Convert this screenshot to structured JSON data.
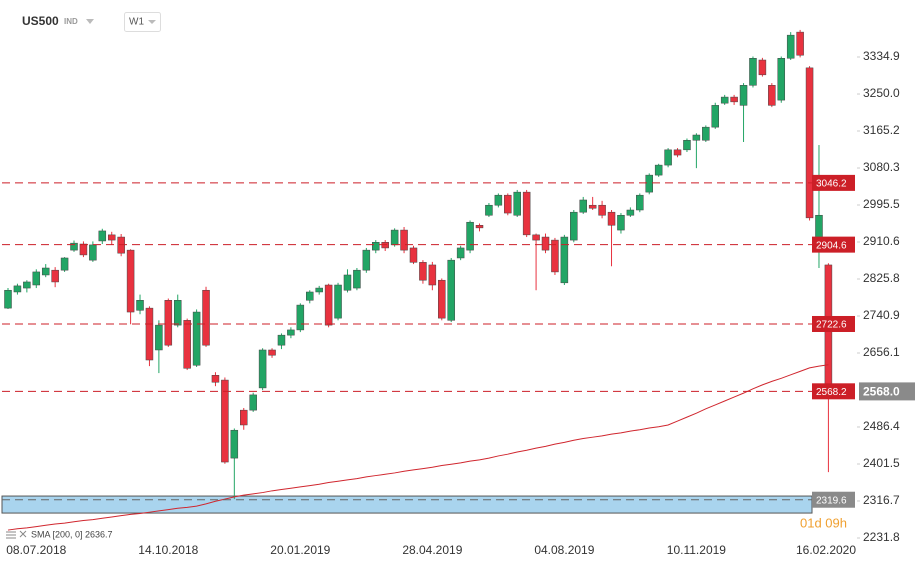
{
  "header": {
    "symbol": "US500",
    "market": "IND",
    "timeframe": "W1"
  },
  "chart_data": {
    "type": "candlestick",
    "categories": [
      null,
      null,
      null,
      "08.07.2018",
      null,
      null,
      null,
      null,
      null,
      null,
      null,
      null,
      null,
      null,
      null,
      null,
      null,
      "14.10.2018",
      null,
      null,
      null,
      null,
      null,
      null,
      null,
      null,
      null,
      null,
      null,
      null,
      null,
      "20.01.2019",
      null,
      null,
      null,
      null,
      null,
      null,
      null,
      null,
      null,
      null,
      null,
      null,
      null,
      "28.04.2019",
      null,
      null,
      null,
      null,
      null,
      null,
      null,
      null,
      null,
      null,
      null,
      null,
      null,
      "04.08.2019",
      null,
      null,
      null,
      null,
      null,
      null,
      null,
      null,
      null,
      null,
      null,
      null,
      null,
      "10.11.2019",
      null,
      null,
      null,
      null,
      null,
      null,
      null,
      null,
      null,
      null,
      null,
      null,
      null,
      "16.02.2020"
    ],
    "open": [
      2759,
      2796,
      2805,
      2812,
      2835,
      2846,
      2846,
      2892,
      2906,
      2869,
      2913,
      2927,
      2922,
      2892,
      2754,
      2759,
      2663,
      2777,
      2720,
      2731,
      2628,
      2800,
      2605,
      2594,
      2415,
      2525,
      2525,
      2576,
      2663,
      2674,
      2697,
      2709,
      2777,
      2796,
      2812,
      2736,
      2800,
      2805,
      2846,
      2892,
      2910,
      2904,
      2938,
      2897,
      2864,
      2858,
      2823,
      2731,
      2874,
      2892,
      2949,
      2972,
      2995,
      3018,
      2972,
      3025,
      2927,
      2922,
      2915,
      2817,
      2915,
      2979,
      2995,
      2995,
      2979,
      2938,
      2972,
      2984,
      3025,
      3064,
      3087,
      3122,
      3122,
      3144,
      3144,
      3174,
      3229,
      3243,
      3224,
      3270,
      3328,
      3270,
      3236,
      3332,
      3392,
      3310,
      2915,
      2858
    ],
    "high": [
      2805,
      2815,
      2823,
      2848,
      2860,
      2853,
      2876,
      2914,
      2912,
      2912,
      2941,
      2934,
      2929,
      2894,
      2790,
      2763,
      2731,
      2781,
      2790,
      2735,
      2756,
      2808,
      2612,
      2600,
      2483,
      2530,
      2565,
      2667,
      2667,
      2701,
      2715,
      2770,
      2800,
      2810,
      2815,
      2817,
      2848,
      2851,
      2897,
      2915,
      2915,
      2942,
      2945,
      2902,
      2869,
      2865,
      2827,
      2874,
      2902,
      2960,
      2953,
      3000,
      3022,
      3022,
      3030,
      3030,
      2930,
      2930,
      2920,
      2927,
      2984,
      3014,
      3014,
      3005,
      2984,
      2977,
      2990,
      3022,
      3068,
      3090,
      3126,
      3126,
      3148,
      3160,
      3178,
      3230,
      3248,
      3248,
      3275,
      3336,
      3333,
      3275,
      3336,
      3392,
      3397,
      3314,
      3133,
      2862
    ],
    "low": [
      2757,
      2790,
      2795,
      2805,
      2830,
      2807,
      2842,
      2888,
      2876,
      2865,
      2906,
      2904,
      2878,
      2722,
      2745,
      2626,
      2610,
      2670,
      2715,
      2617,
      2624,
      2670,
      2580,
      2402,
      2321,
      2480,
      2521,
      2571,
      2645,
      2665,
      2690,
      2704,
      2770,
      2790,
      2715,
      2731,
      2795,
      2800,
      2840,
      2885,
      2890,
      2900,
      2885,
      2860,
      2815,
      2800,
      2731,
      2727,
      2869,
      2885,
      2935,
      2968,
      2990,
      2972,
      2968,
      2922,
      2800,
      2885,
      2835,
      2812,
      2910,
      2975,
      2984,
      2965,
      2855,
      2930,
      2968,
      2979,
      3020,
      3060,
      3082,
      3105,
      3117,
      3080,
      3140,
      3170,
      3225,
      3225,
      3140,
      3265,
      3290,
      3220,
      3230,
      3328,
      3334,
      2960,
      2851,
      2383
    ],
    "close": [
      2800,
      2810,
      2819,
      2842,
      2851,
      2819,
      2874,
      2908,
      2881,
      2904,
      2936,
      2915,
      2885,
      2750,
      2777,
      2640,
      2720,
      2674,
      2777,
      2621,
      2750,
      2674,
      2589,
      2406,
      2479,
      2491,
      2560,
      2663,
      2651,
      2697,
      2709,
      2766,
      2796,
      2805,
      2720,
      2812,
      2835,
      2846,
      2892,
      2910,
      2897,
      2938,
      2892,
      2864,
      2823,
      2812,
      2736,
      2869,
      2897,
      2956,
      2943,
      2995,
      3018,
      2977,
      3025,
      2927,
      2915,
      2892,
      2842,
      2922,
      2979,
      3007,
      2988,
      2972,
      2949,
      2972,
      2984,
      3018,
      3064,
      3087,
      3122,
      3110,
      3144,
      3156,
      3174,
      3224,
      3243,
      3232,
      3270,
      3332,
      3294,
      3224,
      3332,
      3385,
      3339,
      2966,
      2972,
      2560
    ],
    "up_color": "#22a565",
    "down_color": "#e8323f",
    "indicator": {
      "label": "SMA [200, 0] 2636.7",
      "color": "#d0262e",
      "values": [
        2250,
        2253,
        2255,
        2258,
        2261,
        2264,
        2266,
        2269,
        2272,
        2274,
        2277,
        2280,
        2283,
        2286,
        2288,
        2291,
        2294,
        2297,
        2300,
        2302,
        2305,
        2310,
        2316,
        2321,
        2326,
        2330,
        2333,
        2336,
        2340,
        2343,
        2346,
        2349,
        2352,
        2355,
        2359,
        2362,
        2365,
        2368,
        2372,
        2375,
        2378,
        2381,
        2385,
        2388,
        2391,
        2394,
        2398,
        2401,
        2404,
        2408,
        2411,
        2415,
        2420,
        2424,
        2429,
        2433,
        2438,
        2442,
        2447,
        2451,
        2456,
        2460,
        2463,
        2466,
        2470,
        2473,
        2477,
        2480,
        2484,
        2487,
        2491,
        2500,
        2509,
        2518,
        2528,
        2537,
        2546,
        2555,
        2564,
        2574,
        2583,
        2591,
        2598,
        2606,
        2614,
        2622,
        2626,
        2629
      ]
    },
    "levels": [
      3046.2,
      2904.6,
      2722.6,
      2568.2,
      2319.6
    ],
    "level_color": "#cc1f27",
    "zone": [
      2289,
      2328
    ],
    "current_price": {
      "value": 2568,
      "label": "2568.0"
    },
    "countdown": "01d 09h",
    "ylim": [
      2231.8,
      3438.1
    ],
    "yticks": [
      3334.9,
      {
        "value": 3250,
        "label": "3250.0"
      },
      3165.2,
      3080.3,
      2995.5,
      2910.6,
      2825.8,
      2740.9,
      2656.1,
      2486.4,
      2401.5,
      2316.7,
      2231.8
    ]
  }
}
